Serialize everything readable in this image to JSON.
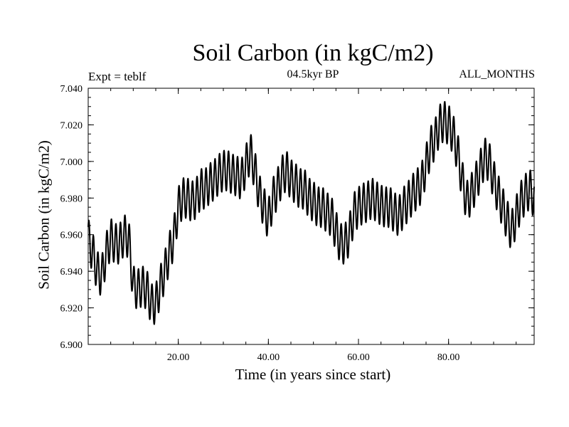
{
  "chart_data": {
    "type": "line",
    "title": "Soil Carbon (in kgC/m2)",
    "subtitle": "04.5kyr BP",
    "left_annotation": "Expt = teblf",
    "right_annotation": "ALL_MONTHS",
    "xlabel": "Time (in years since start)",
    "ylabel": "Soil Carbon (in kgC/m2)",
    "xlim": [
      0,
      99
    ],
    "ylim": [
      6.9,
      7.04
    ],
    "x_ticks": [
      20,
      40,
      60,
      80
    ],
    "x_tick_labels": [
      "20.00",
      "40.00",
      "60.00",
      "80.00"
    ],
    "y_ticks": [
      6.9,
      6.92,
      6.94,
      6.96,
      6.98,
      7.0,
      7.02,
      7.04
    ],
    "y_tick_labels": [
      "6.900",
      "6.920",
      "6.940",
      "6.960",
      "6.980",
      "7.000",
      "7.020",
      "7.040"
    ],
    "series": [
      {
        "name": "Soil Carbon",
        "seasonal_amplitude": 0.011,
        "x": [
          0,
          1,
          2,
          3,
          4,
          5,
          6,
          7,
          8,
          9,
          10,
          11,
          12,
          13,
          14,
          15,
          16,
          17,
          18,
          19,
          20,
          21,
          22,
          23,
          24,
          25,
          26,
          27,
          28,
          29,
          30,
          31,
          32,
          33,
          34,
          35,
          36,
          37,
          38,
          39,
          40,
          41,
          42,
          43,
          44,
          45,
          46,
          47,
          48,
          49,
          50,
          51,
          52,
          53,
          54,
          55,
          56,
          57,
          58,
          59,
          60,
          61,
          62,
          63,
          64,
          65,
          66,
          67,
          68,
          69,
          70,
          71,
          72,
          73,
          74,
          75,
          76,
          77,
          78,
          79,
          80,
          81,
          82,
          83,
          84,
          85,
          86,
          87,
          88,
          89,
          90,
          91,
          92,
          93,
          94,
          95,
          96,
          97,
          98,
          99
        ],
        "annual_mean": [
          6.958,
          6.95,
          6.94,
          6.937,
          6.95,
          6.958,
          6.955,
          6.955,
          6.96,
          6.958,
          6.932,
          6.93,
          6.932,
          6.93,
          6.922,
          6.922,
          6.932,
          6.94,
          6.95,
          6.958,
          6.975,
          6.98,
          6.98,
          6.978,
          6.98,
          6.985,
          6.985,
          6.988,
          6.99,
          6.993,
          6.995,
          6.995,
          6.993,
          6.992,
          6.99,
          6.998,
          7.005,
          6.995,
          6.982,
          6.975,
          6.968,
          6.98,
          6.985,
          6.992,
          6.995,
          6.99,
          6.988,
          6.985,
          6.985,
          6.98,
          6.978,
          6.975,
          6.975,
          6.972,
          6.97,
          6.962,
          6.955,
          6.955,
          6.96,
          6.972,
          6.975,
          6.977,
          6.978,
          6.98,
          6.978,
          6.976,
          6.975,
          6.975,
          6.972,
          6.97,
          6.975,
          6.978,
          6.982,
          6.985,
          6.988,
          6.998,
          7.008,
          7.012,
          7.02,
          7.022,
          7.02,
          7.015,
          7.005,
          6.99,
          6.978,
          6.982,
          6.988,
          6.995,
          7.002,
          7.0,
          6.99,
          6.982,
          6.975,
          6.968,
          6.962,
          6.97,
          6.978,
          6.982,
          6.985,
          6.98
        ]
      }
    ]
  }
}
